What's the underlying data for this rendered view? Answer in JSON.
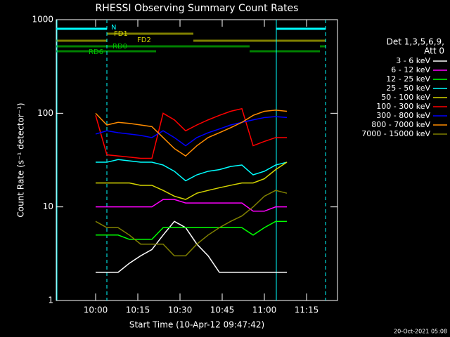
{
  "chart_data": {
    "type": "line",
    "title": "RHESSI Observing Summary Count Rates",
    "xlabel": "Start Time (10-Apr-12 09:47:42)",
    "ylabel": "Count Rate (s⁻¹ detector⁻¹)",
    "legend_title": [
      "Det 1,3,5,6,9,",
      "Att 0"
    ],
    "footer": "20-Oct-2021 05:08",
    "annotations": [
      "N",
      "FD1",
      "FD2",
      "RD0",
      "RD6"
    ],
    "log_y": true,
    "xlim": [
      46,
      146
    ],
    "ylim": [
      1,
      1000
    ],
    "yticks": [
      1,
      10,
      100,
      1000
    ],
    "xticks": [
      {
        "value": 60,
        "label": "10:00"
      },
      {
        "value": 75,
        "label": "10:15"
      },
      {
        "value": 90,
        "label": "10:30"
      },
      {
        "value": 105,
        "label": "10:45"
      },
      {
        "value": 120,
        "label": "11:00"
      },
      {
        "value": 135,
        "label": "11:15"
      }
    ],
    "x": [
      60,
      64,
      68,
      72,
      76,
      80,
      84,
      88,
      92,
      96,
      100,
      104,
      108,
      112,
      116,
      120,
      124,
      128
    ],
    "series": [
      {
        "name": "3 - 6 keV",
        "color": "#ffffff",
        "values": [
          2,
          2,
          2,
          2.5,
          3,
          3.5,
          5,
          7,
          6,
          4,
          3,
          2,
          2,
          2,
          2,
          2,
          2,
          2
        ]
      },
      {
        "name": "6 - 12 keV",
        "color": "#ff00ff",
        "values": [
          10,
          10,
          10,
          10,
          10,
          10,
          12,
          12,
          11,
          11,
          11,
          11,
          11,
          11,
          9,
          9,
          10,
          10
        ]
      },
      {
        "name": "12 - 25 keV",
        "color": "#00ff00",
        "values": [
          5,
          5,
          5,
          4.5,
          4.5,
          4.5,
          6,
          6,
          6,
          6,
          6,
          6,
          6,
          6,
          5,
          6,
          7,
          7
        ]
      },
      {
        "name": "25 - 50 keV",
        "color": "#00ffff",
        "values": [
          30,
          30,
          32,
          31,
          30,
          30,
          28,
          24,
          19,
          22,
          24,
          25,
          27,
          28,
          22,
          24,
          28,
          30
        ]
      },
      {
        "name": "50 - 100 keV",
        "color": "#d4d400",
        "values": [
          18,
          18,
          18,
          18,
          17,
          17,
          15,
          13,
          12,
          14,
          15,
          16,
          17,
          18,
          18,
          20,
          25,
          30
        ]
      },
      {
        "name": "100 - 300 keV",
        "color": "#ff0000",
        "values": [
          95,
          36,
          35,
          34,
          33,
          33,
          100,
          85,
          65,
          75,
          85,
          95,
          105,
          112,
          45,
          50,
          55,
          55
        ]
      },
      {
        "name": "300 - 800 keV",
        "color": "#0000ff",
        "values": [
          60,
          65,
          62,
          60,
          58,
          55,
          65,
          55,
          45,
          55,
          62,
          68,
          75,
          80,
          85,
          90,
          92,
          90
        ]
      },
      {
        "name": "800 - 7000 keV",
        "color": "#ff8c00",
        "values": [
          100,
          75,
          80,
          78,
          75,
          72,
          55,
          42,
          35,
          45,
          55,
          62,
          70,
          80,
          95,
          105,
          108,
          105
        ]
      },
      {
        "name": "7000 - 15000 keV",
        "color": "#808000",
        "values": [
          7,
          6,
          6,
          5,
          4,
          4,
          4,
          3,
          3,
          4,
          5,
          6,
          7,
          8,
          10,
          13,
          15,
          14
        ]
      }
    ]
  }
}
